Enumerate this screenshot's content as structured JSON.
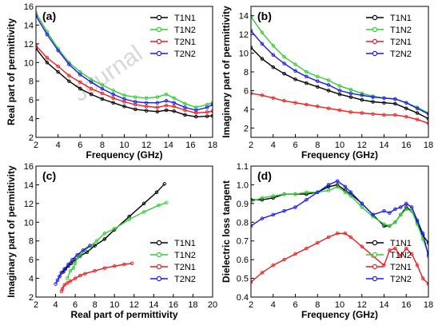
{
  "series_styles": [
    {
      "name": "T1N1",
      "color": "#000000"
    },
    {
      "name": "T1N2",
      "color": "#33cc33"
    },
    {
      "name": "T2N1",
      "color": "#ee1c1c"
    },
    {
      "name": "T2N2",
      "color": "#1a1aee"
    }
  ],
  "chart_data": [
    {
      "type": "line",
      "panel_label": "(a)",
      "xlabel": "Frequency (GHz)",
      "ylabel": "Real part of permittivity",
      "xlim": [
        2,
        18
      ],
      "ylim": [
        2,
        16
      ],
      "xticks": [
        2,
        4,
        6,
        8,
        10,
        12,
        14,
        16,
        18
      ],
      "yticks": [
        2,
        4,
        6,
        8,
        10,
        12,
        14,
        16
      ],
      "legend_position": "top-right",
      "watermark": "Journal",
      "series": [
        {
          "name": "T1N1",
          "x": [
            2,
            3,
            4,
            5,
            6,
            7,
            8,
            9,
            10,
            11,
            12,
            13,
            13.8,
            14.5,
            15.5,
            16.5,
            17.5,
            18
          ],
          "y": [
            11.5,
            10.0,
            9.0,
            8.0,
            7.2,
            6.6,
            6.1,
            5.7,
            5.3,
            5.0,
            4.85,
            4.75,
            4.9,
            4.8,
            4.4,
            4.2,
            4.25,
            4.3
          ]
        },
        {
          "name": "T1N2",
          "x": [
            2,
            3,
            4,
            5,
            6,
            7,
            8,
            9,
            10,
            11,
            12,
            13,
            13.8,
            14.5,
            15.5,
            16.5,
            17.5,
            18
          ],
          "y": [
            15.3,
            13.3,
            11.5,
            10.0,
            9.0,
            8.2,
            7.6,
            7.0,
            6.5,
            6.3,
            6.2,
            6.3,
            6.6,
            6.2,
            5.6,
            5.2,
            5.5,
            5.7
          ]
        },
        {
          "name": "T2N1",
          "x": [
            2,
            3,
            4,
            5,
            6,
            7,
            8,
            9,
            10,
            11,
            12,
            13,
            13.8,
            14.5,
            15.5,
            16.5,
            17.5,
            18
          ],
          "y": [
            11.8,
            10.5,
            9.6,
            8.6,
            7.9,
            7.2,
            6.7,
            6.2,
            5.8,
            5.5,
            5.3,
            5.2,
            5.4,
            5.3,
            4.9,
            4.6,
            4.7,
            4.8
          ]
        },
        {
          "name": "T2N2",
          "x": [
            2,
            3,
            4,
            5,
            6,
            7,
            8,
            9,
            10,
            11,
            12,
            13,
            13.8,
            14.5,
            15.5,
            16.5,
            17.5,
            18
          ],
          "y": [
            15.0,
            13.0,
            11.3,
            9.8,
            8.7,
            7.9,
            7.2,
            6.6,
            6.1,
            5.8,
            5.7,
            5.7,
            5.9,
            5.7,
            5.2,
            4.9,
            5.2,
            5.5
          ]
        }
      ]
    },
    {
      "type": "line",
      "panel_label": "(b)",
      "xlabel": "Frequency (GHz)",
      "ylabel": "Imaginary part of permittivity",
      "xlim": [
        2,
        18
      ],
      "ylim": [
        1,
        15
      ],
      "xticks": [
        2,
        4,
        6,
        8,
        10,
        12,
        14,
        16,
        18
      ],
      "yticks": [
        2,
        4,
        6,
        8,
        10,
        12,
        14
      ],
      "legend_position": "top-right",
      "series": [
        {
          "name": "T1N1",
          "x": [
            2,
            3,
            4,
            5,
            6,
            7,
            8,
            9,
            10,
            11,
            12,
            13,
            14,
            15,
            16,
            17,
            18
          ],
          "y": [
            10.6,
            9.4,
            8.5,
            7.8,
            7.2,
            6.8,
            6.4,
            6.0,
            5.6,
            5.3,
            5.0,
            4.8,
            4.7,
            4.6,
            4.1,
            3.6,
            3.0
          ]
        },
        {
          "name": "T1N2",
          "x": [
            2,
            3,
            4,
            5,
            6,
            7,
            8,
            9,
            10,
            11,
            12,
            13,
            14,
            15,
            16,
            17,
            18
          ],
          "y": [
            13.9,
            12.2,
            10.8,
            9.6,
            8.8,
            8.0,
            7.5,
            7.1,
            6.5,
            6.1,
            5.7,
            5.4,
            5.2,
            5.1,
            4.7,
            4.2,
            3.6
          ]
        },
        {
          "name": "T2N1",
          "x": [
            2,
            3,
            4,
            5,
            6,
            7,
            8,
            9,
            10,
            11,
            12,
            13,
            14,
            15,
            16,
            17,
            18
          ],
          "y": [
            5.7,
            5.5,
            5.2,
            4.9,
            4.7,
            4.5,
            4.3,
            4.1,
            3.9,
            3.7,
            3.6,
            3.5,
            3.4,
            3.4,
            3.2,
            2.9,
            2.5
          ]
        },
        {
          "name": "T2N2",
          "x": [
            2,
            3,
            4,
            5,
            6,
            7,
            8,
            9,
            10,
            11,
            12,
            13,
            14,
            15,
            16,
            17,
            18
          ],
          "y": [
            12.4,
            11.0,
            9.8,
            8.9,
            8.1,
            7.5,
            7.0,
            6.6,
            6.0,
            5.7,
            5.5,
            5.3,
            5.2,
            5.1,
            4.7,
            4.1,
            3.5
          ]
        }
      ]
    },
    {
      "type": "scatter",
      "panel_label": "(c)",
      "xlabel": "Real part of permittivity",
      "ylabel": "Imaginary part of permittivity",
      "xlim": [
        2,
        20
      ],
      "ylim": [
        2,
        16
      ],
      "xticks": [
        2,
        4,
        6,
        8,
        10,
        12,
        14,
        16,
        18,
        20
      ],
      "yticks": [
        2,
        4,
        6,
        8,
        10,
        12,
        14,
        16
      ],
      "legend_position": "bottom-right",
      "series": [
        {
          "name": "T1N1",
          "x": [
            4.4,
            4.6,
            4.8,
            5.0,
            5.3,
            5.6,
            6.0,
            6.5,
            7.2,
            8.0,
            9.0,
            10.0,
            11.5,
            13.0,
            14.3,
            15.1
          ],
          "y": [
            4.2,
            4.6,
            4.7,
            5.0,
            5.3,
            5.6,
            6.0,
            6.4,
            6.8,
            7.5,
            8.2,
            9.2,
            10.6,
            12.0,
            13.2,
            14.1
          ]
        },
        {
          "name": "T1N2",
          "x": [
            5.2,
            5.5,
            5.8,
            6.0,
            6.2,
            6.5,
            7.0,
            7.6,
            8.2,
            9.0,
            10.0,
            11.5,
            13.0,
            14.5,
            15.3
          ],
          "y": [
            4.0,
            4.8,
            5.1,
            5.6,
            6.2,
            6.5,
            7.0,
            7.5,
            8.0,
            8.8,
            9.3,
            10.3,
            11.1,
            11.8,
            12.1
          ]
        },
        {
          "name": "T2N1",
          "x": [
            4.6,
            4.7,
            4.9,
            5.2,
            5.5,
            6.0,
            6.5,
            7.0,
            8.0,
            9.0,
            10.0,
            11.0,
            11.8
          ],
          "y": [
            2.6,
            2.9,
            3.3,
            3.5,
            3.7,
            4.0,
            4.3,
            4.5,
            4.8,
            5.1,
            5.3,
            5.5,
            5.6
          ]
        },
        {
          "name": "T2N2",
          "x": [
            4.0,
            4.2,
            4.4,
            4.6,
            4.9,
            5.3,
            5.7,
            6.2,
            6.8,
            7.5
          ],
          "y": [
            3.4,
            3.8,
            4.2,
            4.6,
            5.0,
            5.5,
            6.0,
            6.5,
            7.0,
            7.5
          ]
        }
      ]
    },
    {
      "type": "line",
      "panel_label": "(d)",
      "xlabel": "Frequency (GHz)",
      "ylabel": "Dielectric loss tangent",
      "xlim": [
        2,
        18
      ],
      "ylim": [
        0.4,
        1.1
      ],
      "xticks": [
        2,
        4,
        6,
        8,
        10,
        12,
        14,
        16,
        18
      ],
      "yticks": [
        0.4,
        0.5,
        0.6,
        0.7,
        0.8,
        0.9,
        1.0,
        1.1
      ],
      "legend_position": "bottom-right",
      "series": [
        {
          "name": "T1N1",
          "x": [
            2,
            3,
            4,
            5,
            6,
            7,
            8,
            9,
            9.8,
            10.5,
            11,
            12,
            13,
            14,
            14.5,
            15,
            15.5,
            16,
            16.5,
            17,
            17.5,
            18
          ],
          "y": [
            0.92,
            0.92,
            0.93,
            0.95,
            0.95,
            0.95,
            0.96,
            0.99,
            1.0,
            0.97,
            0.95,
            0.9,
            0.84,
            0.78,
            0.78,
            0.8,
            0.84,
            0.88,
            0.86,
            0.8,
            0.73,
            0.69
          ]
        },
        {
          "name": "T1N2",
          "x": [
            2,
            3,
            4,
            5,
            6,
            7,
            8,
            9,
            9.8,
            10.5,
            11,
            12,
            13,
            14,
            14.5,
            15,
            15.5,
            16,
            16.5,
            17,
            17.5,
            18
          ],
          "y": [
            0.91,
            0.93,
            0.94,
            0.95,
            0.95,
            0.96,
            0.96,
            0.97,
            0.99,
            0.96,
            0.94,
            0.88,
            0.83,
            0.79,
            0.78,
            0.8,
            0.84,
            0.87,
            0.86,
            0.79,
            0.71,
            0.63
          ]
        },
        {
          "name": "T2N1",
          "x": [
            2,
            3,
            4,
            5,
            6,
            7,
            8,
            9,
            9.8,
            10.5,
            11,
            12,
            13,
            14,
            14.5,
            15,
            15.5,
            16,
            16.5,
            17,
            17.5,
            18
          ],
          "y": [
            0.48,
            0.53,
            0.57,
            0.6,
            0.63,
            0.66,
            0.69,
            0.72,
            0.74,
            0.74,
            0.72,
            0.67,
            0.62,
            0.57,
            0.65,
            0.66,
            0.62,
            0.66,
            0.63,
            0.57,
            0.5,
            0.47
          ]
        },
        {
          "name": "T2N2",
          "x": [
            2,
            3,
            4,
            5,
            6,
            7,
            8,
            9,
            9.8,
            10.5,
            11,
            12,
            13,
            14,
            14.5,
            15,
            15.5,
            16,
            16.5,
            17,
            17.5,
            18
          ],
          "y": [
            0.78,
            0.82,
            0.84,
            0.86,
            0.88,
            0.92,
            0.96,
            1.0,
            1.02,
            0.99,
            0.96,
            0.9,
            0.84,
            0.86,
            0.85,
            0.87,
            0.88,
            0.9,
            0.88,
            0.81,
            0.74,
            0.62
          ]
        }
      ]
    }
  ]
}
